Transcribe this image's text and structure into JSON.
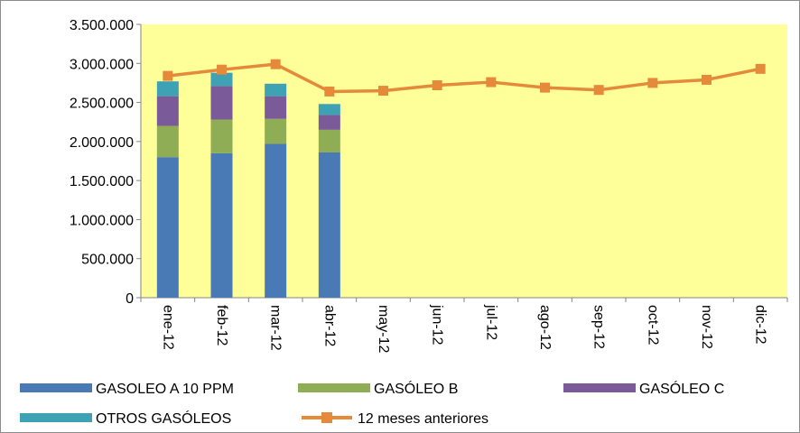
{
  "chart_data": {
    "type": "bar",
    "stacked": true,
    "categories": [
      "ene-12",
      "feb-12",
      "mar-12",
      "abr-12",
      "may-12",
      "jun-12",
      "jul-12",
      "ago-12",
      "sep-12",
      "oct-12",
      "nov-12",
      "dic-12"
    ],
    "series": [
      {
        "name": "GASOLEO A 10 PPM",
        "kind": "bar",
        "color": "#4a7ab5",
        "values": [
          1800000,
          1850000,
          1970000,
          1860000,
          null,
          null,
          null,
          null,
          null,
          null,
          null,
          null
        ]
      },
      {
        "name": "GASÓLEO B",
        "kind": "bar",
        "color": "#8fad55",
        "values": [
          400000,
          430000,
          320000,
          290000,
          null,
          null,
          null,
          null,
          null,
          null,
          null,
          null
        ]
      },
      {
        "name": "GASÓLEO C",
        "kind": "bar",
        "color": "#7a5a99",
        "values": [
          380000,
          430000,
          290000,
          190000,
          null,
          null,
          null,
          null,
          null,
          null,
          null,
          null
        ]
      },
      {
        "name": "OTROS GASÓLEOS",
        "kind": "bar",
        "color": "#3ea1b4",
        "values": [
          190000,
          170000,
          160000,
          140000,
          null,
          null,
          null,
          null,
          null,
          null,
          null,
          null
        ]
      },
      {
        "name": "12 meses anteriores",
        "kind": "line",
        "color": "#e58a3b",
        "values": [
          2840000,
          2920000,
          2990000,
          2640000,
          2650000,
          2720000,
          2760000,
          2690000,
          2660000,
          2750000,
          2790000,
          2930000
        ]
      }
    ],
    "y_ticks": [
      "3.500.000",
      "3.000.000",
      "2.500.000",
      "2.000.000",
      "1.500.000",
      "1.000.000",
      "500.000",
      "0"
    ],
    "ylim": [
      0,
      3500000
    ],
    "y_step": 500000,
    "grid": false,
    "plot_background": "#ffff99",
    "legend_position": "bottom"
  }
}
